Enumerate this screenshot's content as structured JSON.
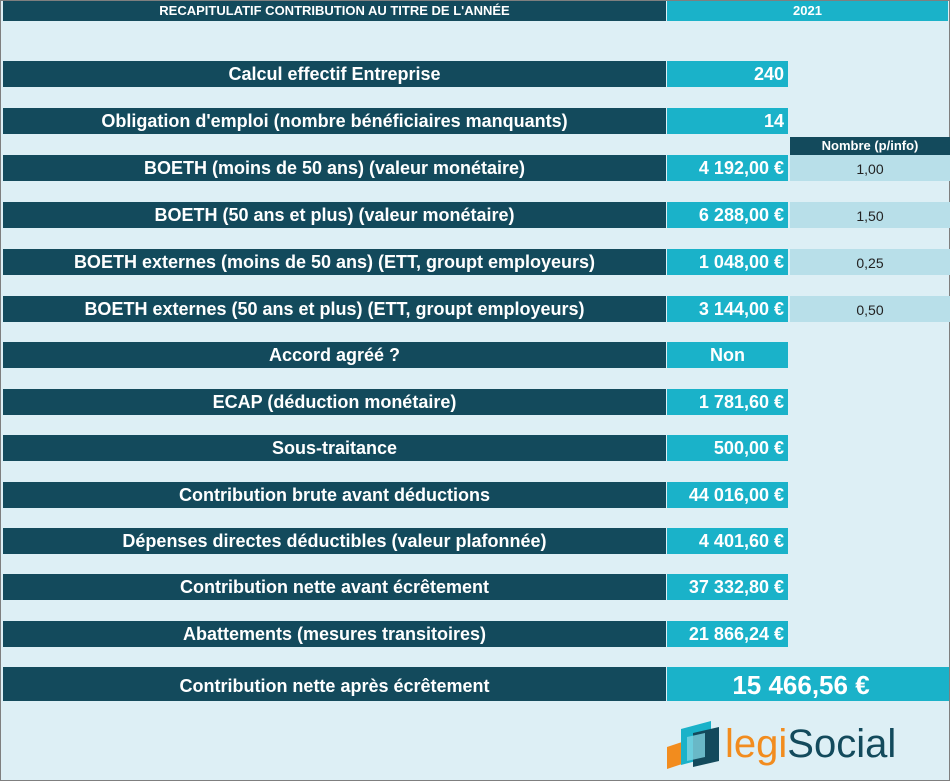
{
  "header": {
    "title": "RECAPITULATIF CONTRIBUTION AU TITRE DE L'ANNÉE",
    "year": "2021"
  },
  "info_header": "Nombre (p/info)",
  "rows": [
    {
      "label": "Calcul effectif Entreprise",
      "value": "240"
    },
    {
      "label": "Obligation d'emploi (nombre bénéficiaires manquants)",
      "value": "14"
    },
    {
      "label": "BOETH (moins de 50 ans) (valeur monétaire)",
      "value": "4 192,00 €",
      "info": "1,00"
    },
    {
      "label": "BOETH (50 ans et plus) (valeur monétaire)",
      "value": "6 288,00 €",
      "info": "1,50"
    },
    {
      "label": "BOETH  externes (moins de 50 ans) (ETT, groupt employeurs)",
      "value": "1 048,00 €",
      "info": "0,25"
    },
    {
      "label": "BOETH  externes (50 ans et plus) (ETT, groupt employeurs)",
      "value": "3 144,00 €",
      "info": "0,50"
    },
    {
      "label": "Accord agréé ?",
      "value": "Non"
    },
    {
      "label": "ECAP (déduction monétaire)",
      "value": "1 781,60 €"
    },
    {
      "label": "Sous-traitance",
      "value": "500,00 €"
    },
    {
      "label": "Contribution brute avant déductions",
      "value": "44 016,00 €"
    },
    {
      "label": "Dépenses directes déductibles (valeur plafonnée)",
      "value": "4 401,60 €"
    },
    {
      "label": "Contribution nette avant écrêtement",
      "value": "37 332,80 €"
    },
    {
      "label": "Abattements (mesures transitoires)",
      "value": "21 866,24 €"
    }
  ],
  "final": {
    "label": "Contribution nette après écrêtement",
    "value": "15 466,56 €"
  },
  "logo": {
    "part1": "legi",
    "part2": "Social"
  },
  "colors": {
    "dark_teal": "#134a5c",
    "cyan": "#1ab2c9",
    "background": "#ddeff5",
    "info_cell": "#b8dfe9",
    "logo_orange": "#f28c1e"
  }
}
